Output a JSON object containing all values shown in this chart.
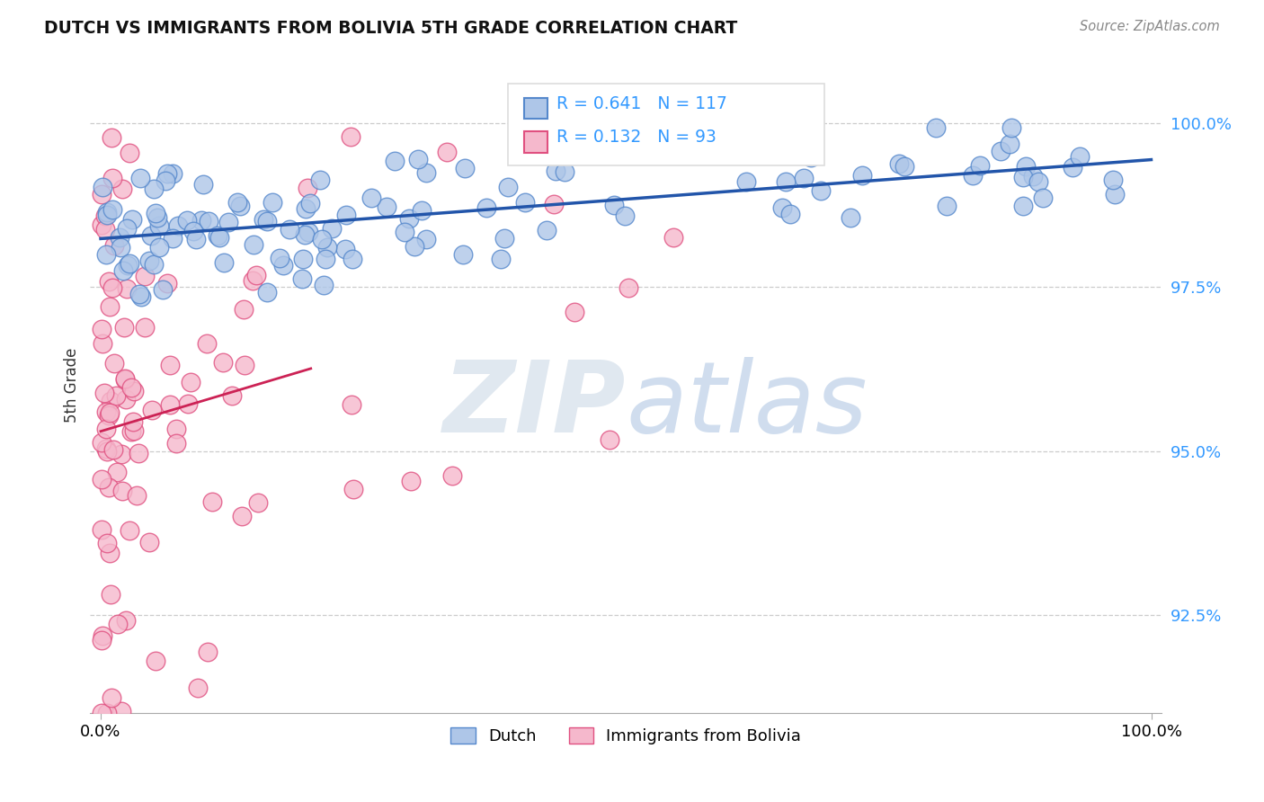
{
  "title": "DUTCH VS IMMIGRANTS FROM BOLIVIA 5TH GRADE CORRELATION CHART",
  "source_text": "Source: ZipAtlas.com",
  "ylabel": "5th Grade",
  "dutch_color": "#aec6e8",
  "dutch_edge_color": "#5588cc",
  "bolivia_color": "#f5b8cc",
  "bolivia_edge_color": "#e05080",
  "trend_blue": "#2255aa",
  "trend_pink": "#cc2255",
  "legend_R_blue": "R = 0.641",
  "legend_N_blue": "N = 117",
  "legend_R_pink": "R = 0.132",
  "legend_N_pink": "N = 93",
  "dutch_label": "Dutch",
  "bolivia_label": "Immigrants from Bolivia"
}
